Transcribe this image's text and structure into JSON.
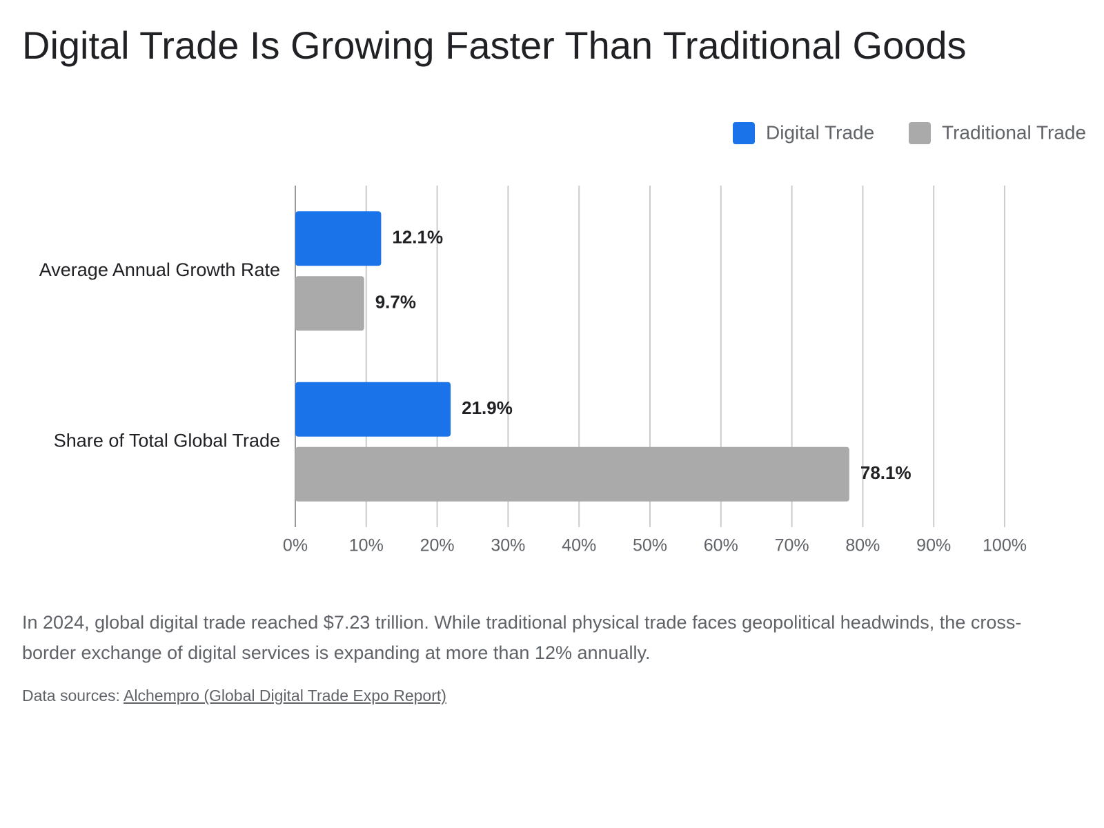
{
  "chart_data": {
    "type": "hbar",
    "title": "Digital Trade Is Growing Faster Than Traditional Goods",
    "categories": [
      "Average Annual Growth Rate",
      "Share of Total Global Trade"
    ],
    "series": [
      {
        "name": "Digital Trade",
        "color": "#1a73e8",
        "values": [
          12.1,
          21.9
        ],
        "value_labels": [
          "12.1%",
          "21.9%"
        ]
      },
      {
        "name": "Traditional Trade",
        "color": "#aaaaaa",
        "values": [
          9.7,
          78.1
        ],
        "value_labels": [
          "9.7%",
          "78.1%"
        ]
      }
    ],
    "xlim": [
      0,
      100
    ],
    "xticks": [
      {
        "value": 0,
        "label": "0%"
      },
      {
        "value": 10,
        "label": "10%"
      },
      {
        "value": 20,
        "label": "20%"
      },
      {
        "value": 30,
        "label": "30%"
      },
      {
        "value": 40,
        "label": "40%"
      },
      {
        "value": 50,
        "label": "50%"
      },
      {
        "value": 60,
        "label": "60%"
      },
      {
        "value": 70,
        "label": "70%"
      },
      {
        "value": 80,
        "label": "80%"
      },
      {
        "value": 90,
        "label": "90%"
      },
      {
        "value": 100,
        "label": "100%"
      }
    ],
    "grid": true,
    "legend": "top-right",
    "description": "In 2024, global digital trade reached $7.23 trillion. While traditional physical trade faces geopolitical headwinds, the cross-border exchange of digital services is expanding at more than 12% annually.",
    "source_prefix": "Data sources:",
    "source_link": "Alchempro (Global Digital Trade Expo Report)"
  }
}
